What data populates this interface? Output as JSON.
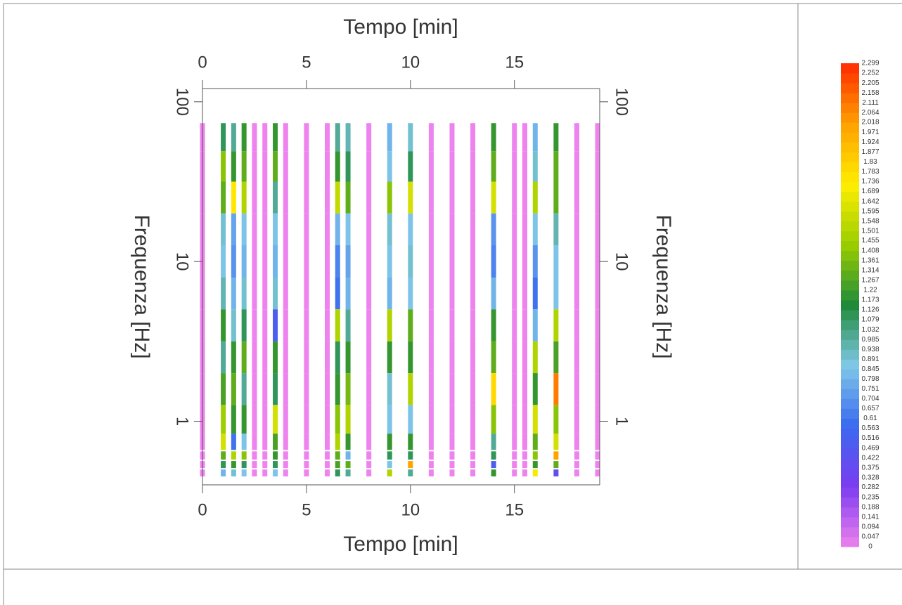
{
  "chart_data": {
    "type": "heatmap",
    "xlabel": "Tempo [min]",
    "ylabel": "Frequenza [Hz]",
    "xlim": [
      0,
      19.1
    ],
    "xticks": [
      0,
      5,
      10,
      15
    ],
    "ylim": [
      0.4,
      121
    ],
    "yticks": [
      1,
      10,
      100
    ],
    "ylog": true,
    "x": [
      0,
      1,
      1.5,
      2,
      2.5,
      3,
      3.5,
      4,
      5,
      6,
      6.5,
      7,
      8,
      9,
      10,
      11,
      12,
      13,
      14,
      15,
      15.5,
      16,
      17,
      18,
      19
    ],
    "y": [
      60,
      40,
      25,
      16,
      10,
      6.3,
      4,
      2.5,
      1.6,
      1,
      0.7,
      0.6,
      0.53,
      0.47
    ],
    "z": [
      [
        0,
        0,
        0,
        0,
        0,
        0,
        0,
        0,
        0,
        0,
        0,
        0,
        0,
        0
      ],
      [
        1.1,
        1.4,
        1.3,
        0.9,
        0.85,
        0.95,
        1.2,
        1.0,
        1.25,
        1.45,
        1.6,
        1.3,
        1.1,
        0.8
      ],
      [
        1.0,
        1.2,
        1.75,
        0.75,
        0.7,
        0.8,
        0.9,
        1.2,
        1.3,
        1.2,
        0.6,
        1.5,
        1.2,
        0.9
      ],
      [
        1.2,
        1.3,
        1.5,
        0.85,
        0.8,
        0.9,
        1.1,
        1.3,
        1.0,
        1.2,
        0.85,
        1.4,
        1.1,
        0.85
      ],
      [
        0,
        0,
        0,
        0,
        0,
        0,
        0,
        0,
        0,
        0,
        0,
        0,
        0,
        0
      ],
      [
        0,
        0,
        0,
        0,
        0,
        0,
        0,
        0,
        0,
        0,
        0,
        0,
        0,
        0
      ],
      [
        1.2,
        1.3,
        1.0,
        0.85,
        0.8,
        0.9,
        0.5,
        1.2,
        1.1,
        1.6,
        1.25,
        1.2,
        1.1,
        0.85
      ],
      [
        0,
        0,
        0,
        0,
        0,
        0,
        0,
        0,
        0,
        0,
        0,
        0,
        0,
        0
      ],
      [
        0,
        0,
        0,
        0,
        0,
        0,
        0,
        0,
        0,
        0,
        0,
        0,
        0,
        0
      ],
      [
        0,
        0,
        0,
        0,
        0,
        0,
        0,
        0,
        0,
        0,
        0,
        0,
        0,
        0
      ],
      [
        1.0,
        1.2,
        1.55,
        0.8,
        0.65,
        0.6,
        1.5,
        1.1,
        1.2,
        1.4,
        1.5,
        1.3,
        1.25,
        1.1
      ],
      [
        0.95,
        1.1,
        1.3,
        0.85,
        0.75,
        0.8,
        1.0,
        1.2,
        1.35,
        1.5,
        1.2,
        0.8,
        1.3,
        1.0
      ],
      [
        0,
        0,
        0,
        0,
        0,
        0,
        0,
        0,
        0,
        0,
        0,
        0,
        0,
        0
      ],
      [
        0.8,
        0.85,
        1.4,
        0.9,
        0.85,
        0.8,
        1.5,
        1.2,
        0.9,
        0.85,
        1.2,
        1.1,
        0.85,
        1.5
      ],
      [
        0.9,
        1.1,
        1.6,
        0.85,
        0.9,
        0.85,
        1.3,
        1.2,
        1.5,
        0.85,
        1.2,
        1.1,
        2.0,
        1.0
      ],
      [
        0,
        0,
        0,
        0,
        0,
        0,
        0,
        0,
        0,
        0,
        0,
        0,
        0,
        0
      ],
      [
        0,
        0,
        0,
        0,
        0,
        0,
        0,
        0,
        0,
        0,
        0,
        0,
        0,
        0
      ],
      [
        0,
        0,
        0,
        0,
        0,
        0,
        0,
        0,
        0,
        0,
        0,
        0,
        0,
        0
      ],
      [
        1.2,
        1.3,
        1.6,
        0.7,
        0.65,
        0.8,
        1.2,
        1.3,
        1.8,
        1.4,
        1.0,
        1.1,
        0.5,
        1.2
      ],
      [
        0,
        0,
        0,
        0,
        0,
        0,
        0,
        0,
        0,
        0,
        0,
        0,
        0,
        0
      ],
      [
        0,
        0,
        0,
        0,
        0,
        0,
        0,
        0,
        0,
        0,
        0,
        0,
        0,
        0
      ],
      [
        0.8,
        0.9,
        1.5,
        0.85,
        0.7,
        0.6,
        0.8,
        1.5,
        1.2,
        1.6,
        1.3,
        1.4,
        1.2,
        1.7
      ],
      [
        1.2,
        1.3,
        1.3,
        0.95,
        0.85,
        0.85,
        1.5,
        1.25,
        2.1,
        1.4,
        1.6,
        2.0,
        1.3,
        0.4
      ],
      [
        0,
        0,
        0,
        0,
        0,
        0,
        0,
        0,
        0,
        0,
        0,
        0,
        0,
        0
      ],
      [
        0,
        0,
        0,
        0,
        0,
        0,
        0,
        0,
        0,
        0,
        0,
        0,
        0,
        0
      ]
    ],
    "zlim": [
      0,
      2.299
    ],
    "zticks": [
      0,
      0.047,
      0.094,
      0.141,
      0.188,
      0.235,
      0.282,
      0.328,
      0.375,
      0.422,
      0.469,
      0.516,
      0.563,
      0.61,
      0.657,
      0.704,
      0.751,
      0.798,
      0.845,
      0.891,
      0.938,
      0.985,
      1.032,
      1.079,
      1.126,
      1.173,
      1.22,
      1.267,
      1.314,
      1.361,
      1.408,
      1.455,
      1.501,
      1.548,
      1.595,
      1.642,
      1.689,
      1.736,
      1.783,
      1.83,
      1.877,
      1.924,
      1.971,
      2.018,
      2.064,
      2.111,
      2.158,
      2.205,
      2.252,
      2.299
    ],
    "colors": [
      "#ee82ee",
      "#7b3cf0",
      "#3a6af0",
      "#80c8e8",
      "#1f8a3a",
      "#9acd00",
      "#ffee00",
      "#ffa000",
      "#ff2a00"
    ]
  }
}
